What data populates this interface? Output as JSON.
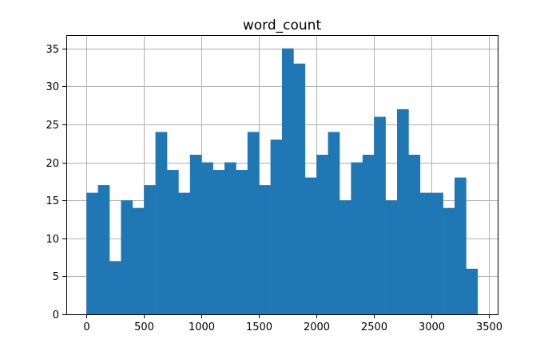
{
  "chart_data": {
    "type": "bar",
    "title": "word_count",
    "xlabel": "",
    "ylabel": "",
    "bar_color": "#1f77b4",
    "grid": true,
    "xlim": [
      -175,
      3575
    ],
    "ylim": [
      0,
      36.75
    ],
    "x_ticks": [
      0,
      500,
      1000,
      1500,
      2000,
      2500,
      3000,
      3500
    ],
    "x_tick_labels": [
      "0",
      "500",
      "1000",
      "1500",
      "2000",
      "2500",
      "3000",
      "3500"
    ],
    "y_ticks": [
      0,
      5,
      10,
      15,
      20,
      25,
      30,
      35
    ],
    "y_tick_labels": [
      "0",
      "5",
      "10",
      "15",
      "20",
      "25",
      "30",
      "35"
    ],
    "bins": {
      "start": 0,
      "end": 3400,
      "edges": [
        0,
        100,
        200,
        300,
        400,
        500,
        600,
        700,
        800,
        900,
        1000,
        1100,
        1200,
        1300,
        1400,
        1500,
        1600,
        1700,
        1800,
        1900,
        2000,
        2100,
        2200,
        2300,
        2400,
        2500,
        2600,
        2700,
        2800,
        2900,
        3000,
        3100,
        3200,
        3300,
        3400
      ]
    },
    "values": [
      16,
      17,
      7,
      15,
      14,
      17,
      24,
      19,
      16,
      21,
      20,
      19,
      20,
      19,
      24,
      17,
      23,
      35,
      33,
      18,
      21,
      24,
      15,
      20,
      21,
      26,
      15,
      27,
      21,
      16,
      16,
      14,
      18,
      6
    ]
  }
}
